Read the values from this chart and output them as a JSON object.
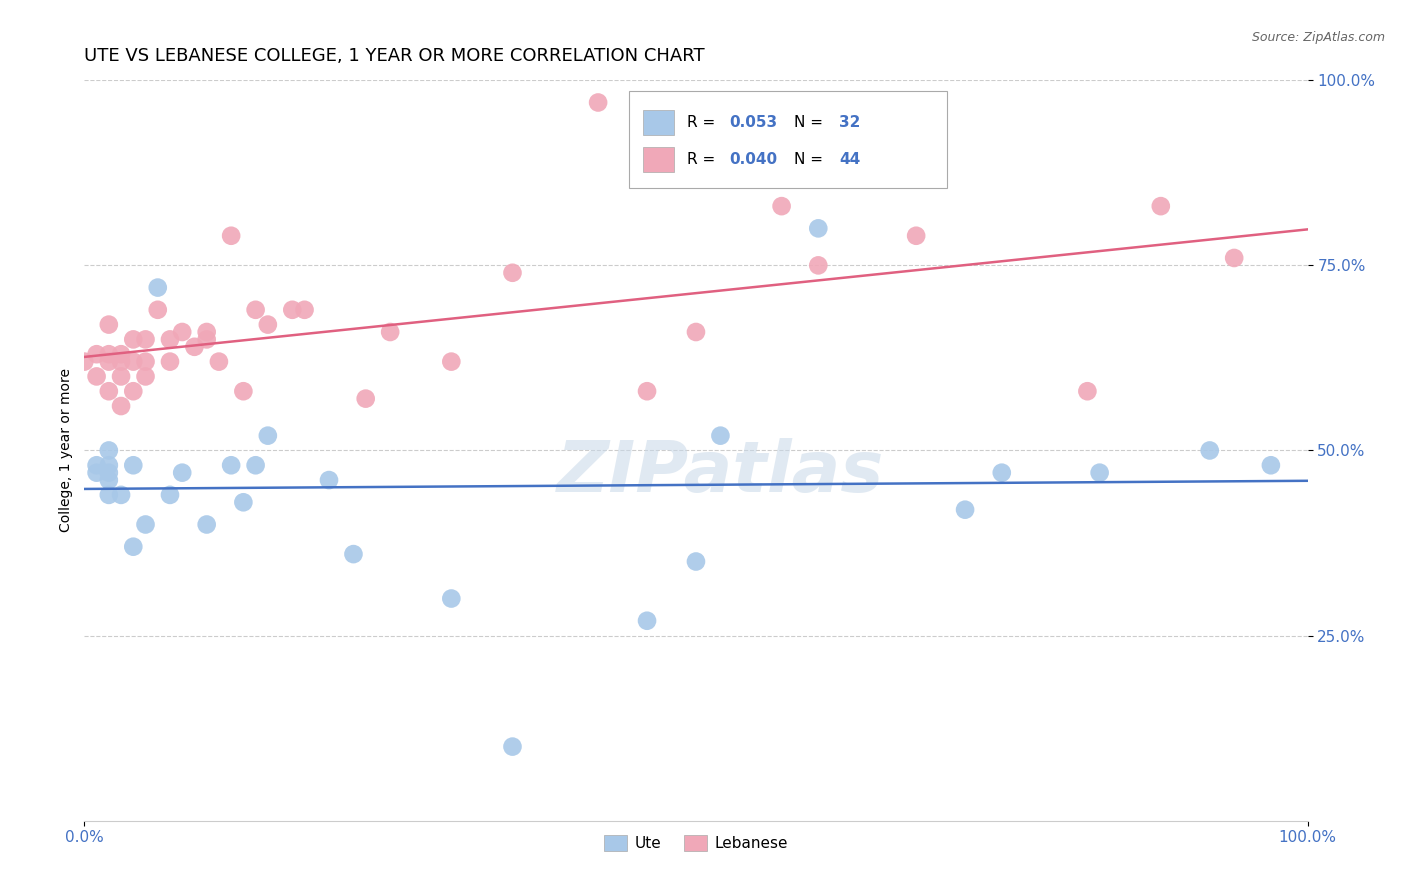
{
  "title": "UTE VS LEBANESE COLLEGE, 1 YEAR OR MORE CORRELATION CHART",
  "xlabel": "",
  "ylabel": "College, 1 year or more",
  "source_text": "Source: ZipAtlas.com",
  "watermark": "ZIPatlas",
  "xlim": [
    0.0,
    1.0
  ],
  "ylim": [
    0.0,
    1.0
  ],
  "xtick_labels": [
    "0.0%",
    "100.0%"
  ],
  "ytick_labels": [
    "100.0%",
    "75.0%",
    "50.0%",
    "25.0%"
  ],
  "ytick_values": [
    1.0,
    0.75,
    0.5,
    0.25
  ],
  "grid_color": "#cccccc",
  "blue_color": "#a8c8e8",
  "pink_color": "#f0a8b8",
  "blue_line_color": "#4472c4",
  "pink_line_color": "#e06080",
  "tick_color": "#4472c4",
  "legend_R_blue": "0.053",
  "legend_N_blue": "32",
  "legend_R_pink": "0.040",
  "legend_N_pink": "44",
  "ute_x": [
    0.01,
    0.01,
    0.02,
    0.02,
    0.02,
    0.02,
    0.02,
    0.03,
    0.04,
    0.04,
    0.05,
    0.06,
    0.07,
    0.08,
    0.1,
    0.12,
    0.13,
    0.14,
    0.15,
    0.2,
    0.22,
    0.3,
    0.35,
    0.46,
    0.5,
    0.52,
    0.6,
    0.72,
    0.75,
    0.83,
    0.92,
    0.97
  ],
  "ute_y": [
    0.47,
    0.48,
    0.44,
    0.46,
    0.47,
    0.5,
    0.48,
    0.44,
    0.37,
    0.48,
    0.4,
    0.72,
    0.44,
    0.47,
    0.4,
    0.48,
    0.43,
    0.48,
    0.52,
    0.46,
    0.36,
    0.3,
    0.1,
    0.27,
    0.35,
    0.52,
    0.8,
    0.42,
    0.47,
    0.47,
    0.5,
    0.48
  ],
  "leb_x": [
    0.0,
    0.01,
    0.01,
    0.02,
    0.02,
    0.02,
    0.02,
    0.03,
    0.03,
    0.03,
    0.03,
    0.04,
    0.04,
    0.04,
    0.05,
    0.05,
    0.05,
    0.06,
    0.07,
    0.07,
    0.08,
    0.09,
    0.1,
    0.1,
    0.11,
    0.12,
    0.13,
    0.14,
    0.15,
    0.17,
    0.18,
    0.23,
    0.25,
    0.3,
    0.35,
    0.42,
    0.46,
    0.5,
    0.57,
    0.6,
    0.68,
    0.82,
    0.88,
    0.94
  ],
  "leb_y": [
    0.62,
    0.63,
    0.6,
    0.67,
    0.63,
    0.62,
    0.58,
    0.63,
    0.62,
    0.6,
    0.56,
    0.65,
    0.62,
    0.58,
    0.6,
    0.65,
    0.62,
    0.69,
    0.65,
    0.62,
    0.66,
    0.64,
    0.65,
    0.66,
    0.62,
    0.79,
    0.58,
    0.69,
    0.67,
    0.69,
    0.69,
    0.57,
    0.66,
    0.62,
    0.74,
    0.97,
    0.58,
    0.66,
    0.83,
    0.75,
    0.79,
    0.58,
    0.83,
    0.76
  ],
  "background_color": "#ffffff",
  "title_fontsize": 13,
  "axis_label_fontsize": 10,
  "tick_fontsize": 11
}
